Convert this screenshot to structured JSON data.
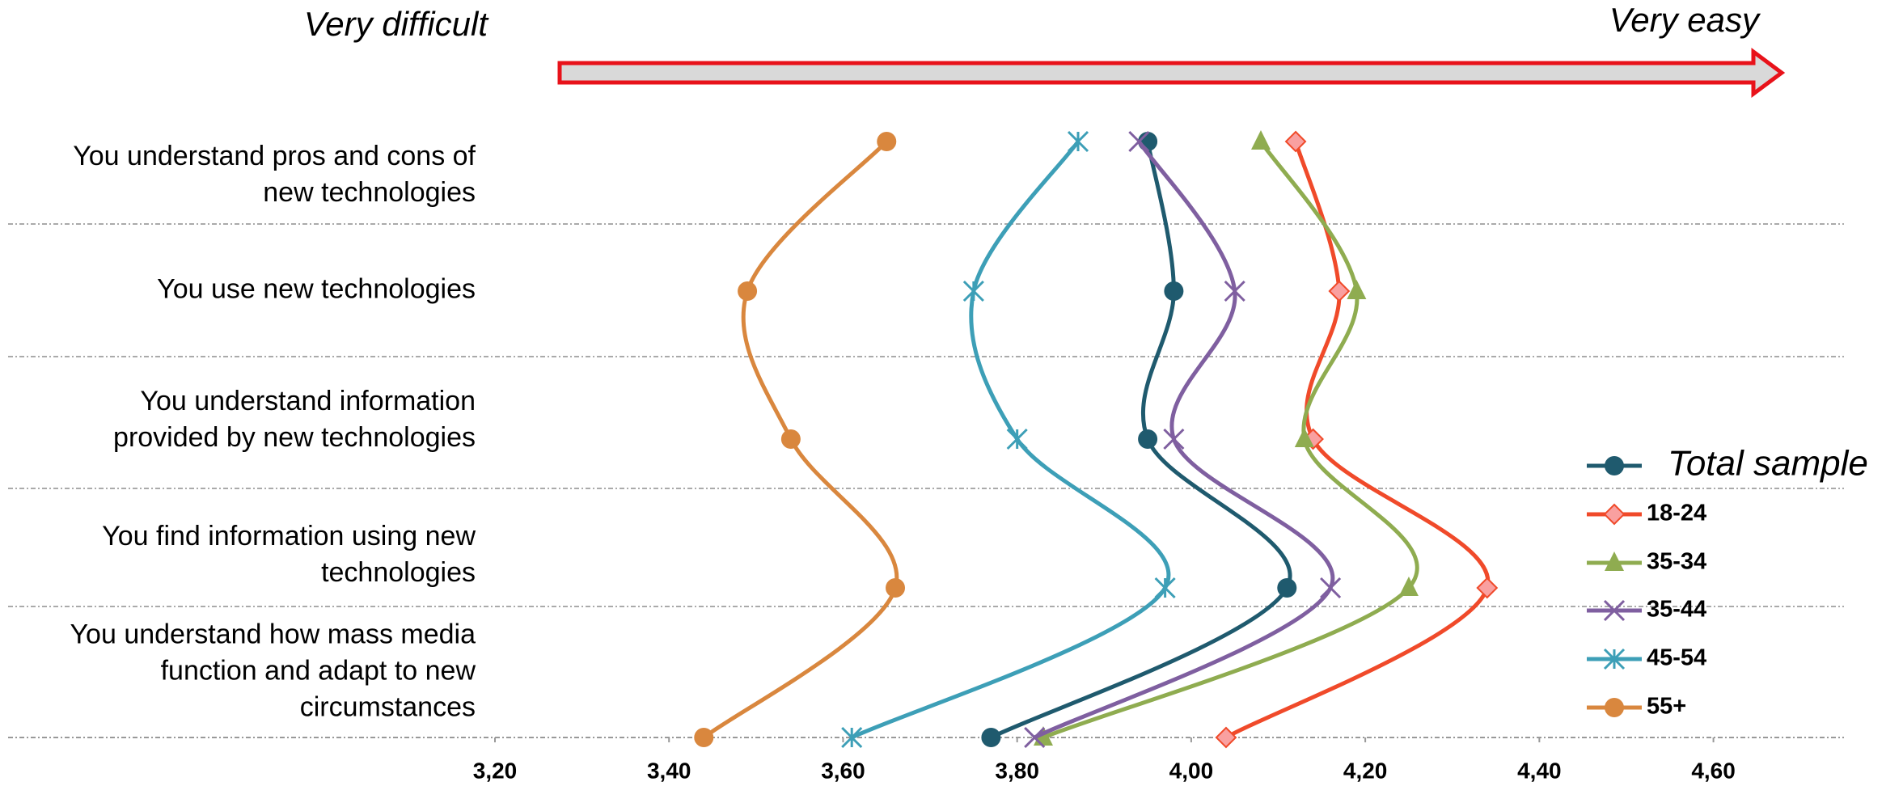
{
  "chart_data": {
    "type": "line",
    "orientation": "horizontal",
    "annotations": [
      "Very difficult",
      "Very easy"
    ],
    "categories": [
      "You understand pros and cons of new technologies",
      "You use new technologies",
      "You understand information provided by new technologies",
      "You find information using new technologies",
      "You understand how mass media function and adapt to new circumstances"
    ],
    "series": [
      {
        "name": "Total sample",
        "color": "#1f5a6e",
        "marker": "circle",
        "values": [
          3.95,
          3.98,
          3.95,
          4.11,
          3.77
        ]
      },
      {
        "name": "18-24",
        "color": "#f04a2a",
        "marker": "diamond",
        "values": [
          4.12,
          4.17,
          4.14,
          4.34,
          4.04
        ]
      },
      {
        "name": "35-34",
        "color": "#8fac50",
        "marker": "triangle",
        "values": [
          4.08,
          4.19,
          4.13,
          4.25,
          3.83
        ]
      },
      {
        "name": "35-44",
        "color": "#7f5fa0",
        "marker": "x",
        "values": [
          3.94,
          4.05,
          3.98,
          4.16,
          3.82
        ]
      },
      {
        "name": "45-54",
        "color": "#3d9fb7",
        "marker": "asterisk",
        "values": [
          3.87,
          3.75,
          3.8,
          3.97,
          3.61
        ]
      },
      {
        "name": "55+",
        "color": "#d9873e",
        "marker": "circle",
        "values": [
          3.65,
          3.49,
          3.54,
          3.66,
          3.44
        ]
      }
    ],
    "xlim": [
      3.2,
      4.75
    ],
    "xticks": [
      {
        "value": 3.2,
        "label": "3,20"
      },
      {
        "value": 3.4,
        "label": "3,40"
      },
      {
        "value": 3.6,
        "label": "3,60"
      },
      {
        "value": 3.8,
        "label": "3,80"
      },
      {
        "value": 4.0,
        "label": "4,00"
      },
      {
        "value": 4.2,
        "label": "4,20"
      },
      {
        "value": 4.4,
        "label": "4,40"
      },
      {
        "value": 4.6,
        "label": "4,60"
      }
    ],
    "grid": true,
    "legend": "right"
  }
}
